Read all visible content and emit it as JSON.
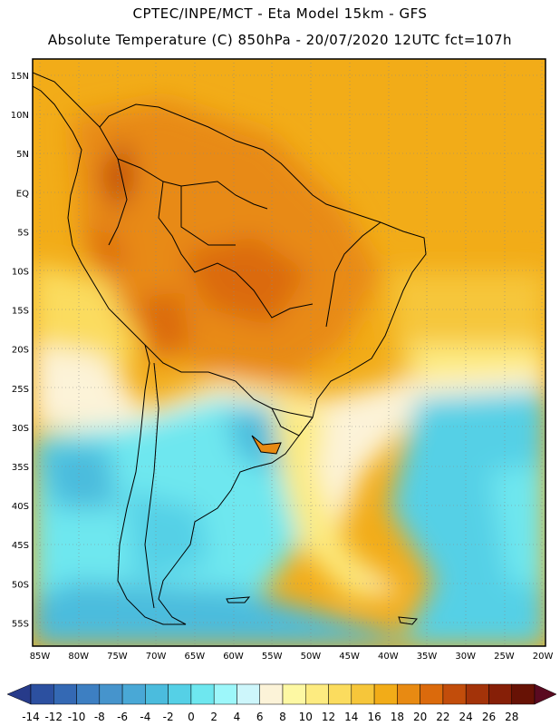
{
  "header": {
    "line1": "CPTEC/INPE/MCT -  Eta Model 15km - GFS",
    "line2": "Absolute Temperature (C) 850hPa - 20/07/2020 12UTC fct=107h"
  },
  "map": {
    "lon_labels": [
      "85W",
      "80W",
      "75W",
      "70W",
      "65W",
      "60W",
      "55W",
      "50W",
      "45W",
      "40W",
      "35W",
      "30W",
      "25W",
      "20W"
    ],
    "lat_labels": [
      "15N",
      "10N",
      "5N",
      "EQ",
      "5S",
      "10S",
      "15S",
      "20S",
      "25S",
      "30S",
      "35S",
      "40S",
      "45S",
      "50S",
      "55S"
    ],
    "lon_range": [
      -85,
      -20
    ],
    "lat_range": [
      17,
      -58
    ],
    "gridlines": "dotted",
    "land_outline_color": "#000000"
  },
  "colorbar": {
    "ticks": [
      "-14",
      "-12",
      "-10",
      "-8",
      "-6",
      "-4",
      "-2",
      "0",
      "2",
      "4",
      "6",
      "8",
      "10",
      "12",
      "14",
      "16",
      "18",
      "20",
      "22",
      "24",
      "26",
      "28"
    ],
    "colors": [
      "#273b8a",
      "#2c50a0",
      "#3469b4",
      "#3d7fc2",
      "#4694cc",
      "#49a8d6",
      "#4bbcdd",
      "#55d0e6",
      "#6ee7ef",
      "#9df7fa",
      "#cdf6fb",
      "#fcf3d8",
      "#fdf8a3",
      "#fdeb80",
      "#fbdc5e",
      "#f6c63a",
      "#f2ac18",
      "#e88a12",
      "#db6a0c",
      "#c24d0b",
      "#a33309",
      "#861f07",
      "#671205",
      "#5a0a20"
    ]
  }
}
